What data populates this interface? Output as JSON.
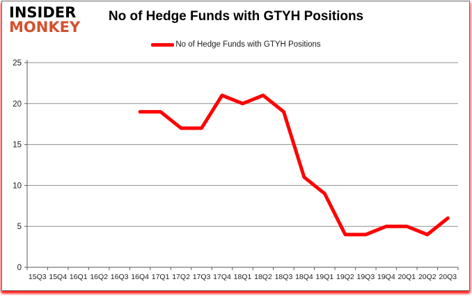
{
  "logo": {
    "line1": "INSIDER",
    "line2": "MONKEY"
  },
  "header": {
    "title": "No of Hedge Funds with GTYH Positions"
  },
  "legend": {
    "label": "No of Hedge Funds with GTYH Positions",
    "swatch_color": "#ff0000"
  },
  "colors": {
    "line": "#ff0000",
    "grid": "#8e8e8e",
    "axis": "#595959",
    "text": "#1a1a1a",
    "logo_red": "#d4502e"
  },
  "chart_data": {
    "type": "line",
    "title": "No of Hedge Funds with GTYH Positions",
    "categories": [
      "15Q3",
      "15Q4",
      "16Q1",
      "16Q2",
      "16Q3",
      "16Q4",
      "17Q1",
      "17Q2",
      "17Q3",
      "17Q4",
      "18Q1",
      "18Q2",
      "18Q3",
      "18Q4",
      "19Q1",
      "19Q2",
      "19Q3",
      "19Q4",
      "20Q1",
      "20Q2",
      "20Q3"
    ],
    "series": [
      {
        "name": "No of Hedge Funds with GTYH Positions",
        "color": "#ff0000",
        "values": [
          null,
          null,
          null,
          null,
          null,
          19,
          19,
          17,
          17,
          21,
          20,
          21,
          19,
          11,
          9,
          4,
          4,
          5,
          5,
          4,
          6
        ]
      }
    ],
    "ylim": [
      0,
      25
    ],
    "yticks": [
      0,
      5,
      10,
      15,
      20,
      25
    ],
    "grid": true,
    "legend_position": "top",
    "xlabel": "",
    "ylabel": ""
  }
}
